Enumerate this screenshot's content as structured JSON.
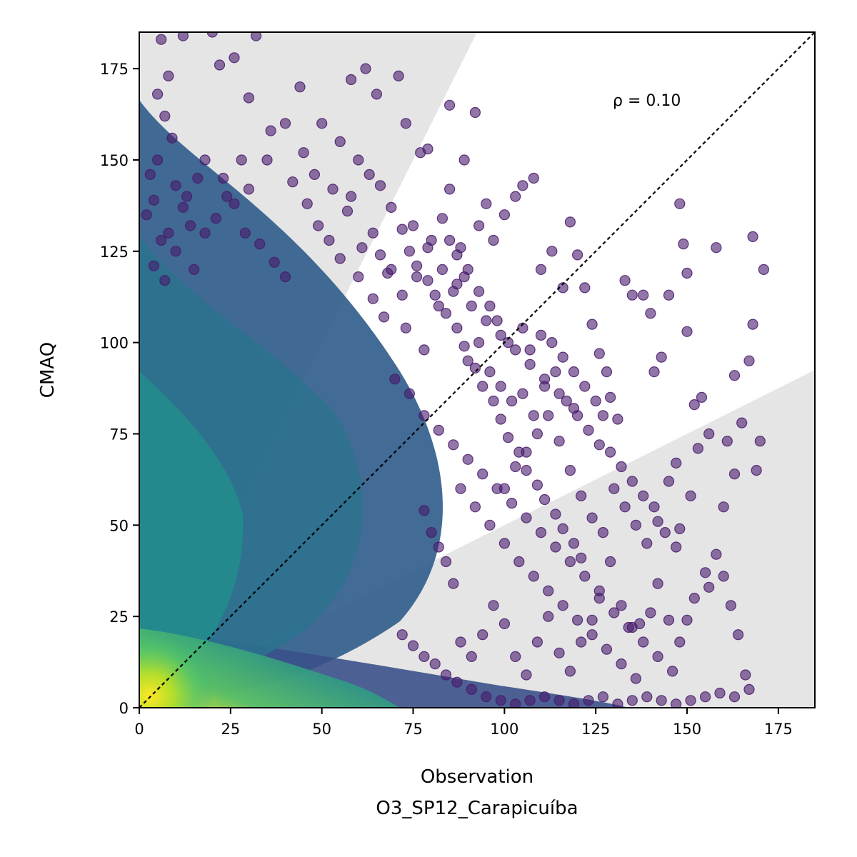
{
  "chart_data": {
    "type": "scatter",
    "xlabel": "Observation",
    "xlabel_sub": "O3_SP12_Carapicuíba",
    "ylabel": "CMAQ",
    "xlim": [
      0,
      185
    ],
    "ylim": [
      0,
      185
    ],
    "x_ticks": [
      "0",
      "25",
      "50",
      "75",
      "100",
      "125",
      "150",
      "175"
    ],
    "y_ticks": [
      "0",
      "25",
      "50",
      "75",
      "100",
      "125",
      "150",
      "175"
    ],
    "annotation": "ρ = 0.10",
    "reference_line": "y = x",
    "grid": false,
    "colormap": "viridis",
    "colors": {
      "sparse": "#481a6c",
      "mid": "#3b518b",
      "dense": "#21918c",
      "peak": "#fde725",
      "band": "#e5e5e5"
    },
    "density_gradient": {
      "values": [
        0,
        0.25,
        0.5,
        0.75,
        1
      ],
      "colors": [
        "#440154",
        "#3b528b",
        "#21918c",
        "#5ec962",
        "#fde725"
      ]
    },
    "agreement_band": {
      "lower_slope": 0.5,
      "upper_slope": 2.0
    },
    "points": [
      [
        6,
        183
      ],
      [
        12,
        184
      ],
      [
        32,
        184
      ],
      [
        8,
        173
      ],
      [
        5,
        168
      ],
      [
        7,
        162
      ],
      [
        9,
        156
      ],
      [
        5,
        150
      ],
      [
        3,
        146
      ],
      [
        10,
        143
      ],
      [
        4,
        139
      ],
      [
        13,
        140
      ],
      [
        2,
        135
      ],
      [
        14,
        132
      ],
      [
        6,
        128
      ],
      [
        18,
        130
      ],
      [
        10,
        125
      ],
      [
        21,
        134
      ],
      [
        4,
        121
      ],
      [
        15,
        120
      ],
      [
        7,
        117
      ],
      [
        23,
        145
      ],
      [
        26,
        138
      ],
      [
        29,
        130
      ],
      [
        33,
        127
      ],
      [
        37,
        122
      ],
      [
        40,
        118
      ],
      [
        30,
        142
      ],
      [
        35,
        150
      ],
      [
        42,
        144
      ],
      [
        46,
        138
      ],
      [
        49,
        132
      ],
      [
        52,
        128
      ],
      [
        55,
        123
      ],
      [
        58,
        140
      ],
      [
        61,
        126
      ],
      [
        50,
        160
      ],
      [
        55,
        155
      ],
      [
        44,
        170
      ],
      [
        30,
        167
      ],
      [
        22,
        176
      ],
      [
        20,
        185
      ],
      [
        26,
        178
      ],
      [
        18,
        150
      ],
      [
        58,
        172
      ],
      [
        62,
        175
      ],
      [
        65,
        168
      ],
      [
        71,
        173
      ],
      [
        73,
        160
      ],
      [
        77,
        152
      ],
      [
        79,
        153
      ],
      [
        80,
        128
      ],
      [
        83,
        134
      ],
      [
        85,
        142
      ],
      [
        88,
        126
      ],
      [
        90,
        120
      ],
      [
        76,
        118
      ],
      [
        72,
        113
      ],
      [
        68,
        119
      ],
      [
        64,
        112
      ],
      [
        60,
        118
      ],
      [
        67,
        107
      ],
      [
        73,
        104
      ],
      [
        78,
        98
      ],
      [
        82,
        110
      ],
      [
        86,
        114
      ],
      [
        92,
        163
      ],
      [
        85,
        165
      ],
      [
        89,
        150
      ],
      [
        93,
        132
      ],
      [
        95,
        138
      ],
      [
        97,
        128
      ],
      [
        100,
        135
      ],
      [
        103,
        140
      ],
      [
        105,
        143
      ],
      [
        108,
        145
      ],
      [
        110,
        120
      ],
      [
        113,
        125
      ],
      [
        116,
        115
      ],
      [
        118,
        133
      ],
      [
        120,
        124
      ],
      [
        122,
        115
      ],
      [
        124,
        105
      ],
      [
        126,
        97
      ],
      [
        128,
        92
      ],
      [
        129,
        85
      ],
      [
        131,
        79
      ],
      [
        133,
        117
      ],
      [
        135,
        113
      ],
      [
        138,
        113
      ],
      [
        140,
        108
      ],
      [
        141,
        92
      ],
      [
        143,
        96
      ],
      [
        145,
        113
      ],
      [
        147,
        67
      ],
      [
        148,
        138
      ],
      [
        149,
        127
      ],
      [
        150,
        119
      ],
      [
        150,
        103
      ],
      [
        152,
        83
      ],
      [
        154,
        85
      ],
      [
        156,
        75
      ],
      [
        158,
        126
      ],
      [
        161,
        73
      ],
      [
        163,
        91
      ],
      [
        165,
        78
      ],
      [
        168,
        129
      ],
      [
        168,
        105
      ],
      [
        169,
        65
      ],
      [
        171,
        120
      ],
      [
        170,
        73
      ],
      [
        167,
        95
      ],
      [
        163,
        64
      ],
      [
        160,
        55
      ],
      [
        158,
        42
      ],
      [
        155,
        37
      ],
      [
        152,
        30
      ],
      [
        150,
        24
      ],
      [
        148,
        18
      ],
      [
        145,
        24
      ],
      [
        142,
        34
      ],
      [
        140,
        26
      ],
      [
        137,
        23
      ],
      [
        135,
        22
      ],
      [
        132,
        28
      ],
      [
        129,
        40
      ],
      [
        126,
        32
      ],
      [
        124,
        24
      ],
      [
        121,
        18
      ],
      [
        118,
        10
      ],
      [
        115,
        15
      ],
      [
        112,
        25
      ],
      [
        109,
        18
      ],
      [
        106,
        9
      ],
      [
        103,
        14
      ],
      [
        100,
        23
      ],
      [
        97,
        28
      ],
      [
        94,
        20
      ],
      [
        91,
        14
      ],
      [
        88,
        18
      ],
      [
        86,
        34
      ],
      [
        84,
        40
      ],
      [
        82,
        44
      ],
      [
        80,
        48
      ],
      [
        78,
        54
      ],
      [
        100,
        60
      ],
      [
        103,
        66
      ],
      [
        106,
        70
      ],
      [
        109,
        75
      ],
      [
        112,
        80
      ],
      [
        115,
        73
      ],
      [
        118,
        65
      ],
      [
        121,
        58
      ],
      [
        124,
        52
      ],
      [
        127,
        48
      ],
      [
        130,
        60
      ],
      [
        133,
        55
      ],
      [
        136,
        50
      ],
      [
        139,
        45
      ],
      [
        142,
        51
      ],
      [
        145,
        62
      ],
      [
        148,
        49
      ],
      [
        151,
        58
      ],
      [
        153,
        71
      ],
      [
        156,
        33
      ],
      [
        160,
        36
      ],
      [
        162,
        28
      ],
      [
        164,
        20
      ],
      [
        166,
        9
      ],
      [
        167,
        5
      ],
      [
        163,
        3
      ],
      [
        159,
        4
      ],
      [
        155,
        3
      ],
      [
        151,
        2
      ],
      [
        147,
        1
      ],
      [
        143,
        2
      ],
      [
        139,
        3
      ],
      [
        135,
        2
      ],
      [
        131,
        1
      ],
      [
        127,
        3
      ],
      [
        123,
        2
      ],
      [
        119,
        1
      ],
      [
        115,
        2
      ],
      [
        111,
        3
      ],
      [
        107,
        2
      ],
      [
        103,
        1
      ],
      [
        99,
        2
      ],
      [
        95,
        3
      ],
      [
        91,
        5
      ],
      [
        87,
        7
      ],
      [
        84,
        9
      ],
      [
        81,
        12
      ],
      [
        78,
        14
      ],
      [
        75,
        17
      ],
      [
        72,
        20
      ],
      [
        90,
        95
      ],
      [
        93,
        100
      ],
      [
        96,
        92
      ],
      [
        99,
        88
      ],
      [
        102,
        84
      ],
      [
        105,
        86
      ],
      [
        108,
        80
      ],
      [
        111,
        88
      ],
      [
        114,
        92
      ],
      [
        117,
        84
      ],
      [
        120,
        80
      ],
      [
        123,
        76
      ],
      [
        126,
        72
      ],
      [
        129,
        70
      ],
      [
        132,
        66
      ],
      [
        135,
        62
      ],
      [
        138,
        58
      ],
      [
        141,
        55
      ],
      [
        144,
        48
      ],
      [
        147,
        44
      ],
      [
        70,
        90
      ],
      [
        74,
        86
      ],
      [
        78,
        80
      ],
      [
        82,
        76
      ],
      [
        86,
        72
      ],
      [
        90,
        68
      ],
      [
        94,
        64
      ],
      [
        98,
        60
      ],
      [
        102,
        56
      ],
      [
        106,
        52
      ],
      [
        110,
        48
      ],
      [
        114,
        44
      ],
      [
        118,
        40
      ],
      [
        122,
        36
      ],
      [
        126,
        30
      ],
      [
        130,
        26
      ],
      [
        134,
        22
      ],
      [
        138,
        18
      ],
      [
        142,
        14
      ],
      [
        146,
        10
      ],
      [
        75,
        132
      ],
      [
        79,
        126
      ],
      [
        83,
        120
      ],
      [
        87,
        116
      ],
      [
        91,
        110
      ],
      [
        95,
        106
      ],
      [
        99,
        102
      ],
      [
        103,
        98
      ],
      [
        107,
        94
      ],
      [
        111,
        90
      ],
      [
        115,
        86
      ],
      [
        119,
        82
      ],
      [
        88,
        60
      ],
      [
        92,
        55
      ],
      [
        96,
        50
      ],
      [
        100,
        45
      ],
      [
        104,
        40
      ],
      [
        108,
        36
      ],
      [
        112,
        32
      ],
      [
        116,
        28
      ],
      [
        120,
        24
      ],
      [
        124,
        20
      ],
      [
        128,
        16
      ],
      [
        132,
        12
      ],
      [
        136,
        8
      ],
      [
        60,
        150
      ],
      [
        63,
        146
      ],
      [
        66,
        143
      ],
      [
        69,
        137
      ],
      [
        72,
        131
      ],
      [
        74,
        125
      ],
      [
        76,
        121
      ],
      [
        79,
        117
      ],
      [
        81,
        113
      ],
      [
        84,
        108
      ],
      [
        87,
        104
      ],
      [
        89,
        99
      ],
      [
        92,
        93
      ],
      [
        94,
        88
      ],
      [
        97,
        84
      ],
      [
        99,
        79
      ],
      [
        101,
        74
      ],
      [
        104,
        70
      ],
      [
        106,
        65
      ],
      [
        109,
        61
      ],
      [
        111,
        57
      ],
      [
        114,
        53
      ],
      [
        116,
        49
      ],
      [
        119,
        45
      ],
      [
        121,
        41
      ],
      [
        40,
        160
      ],
      [
        36,
        158
      ],
      [
        28,
        150
      ],
      [
        24,
        140
      ],
      [
        16,
        145
      ],
      [
        12,
        137
      ],
      [
        8,
        130
      ],
      [
        45,
        152
      ],
      [
        48,
        146
      ],
      [
        53,
        142
      ],
      [
        57,
        136
      ],
      [
        64,
        130
      ],
      [
        66,
        124
      ],
      [
        69,
        120
      ],
      [
        85,
        128
      ],
      [
        87,
        124
      ],
      [
        89,
        118
      ],
      [
        93,
        114
      ],
      [
        96,
        110
      ],
      [
        98,
        106
      ],
      [
        101,
        100
      ],
      [
        105,
        104
      ],
      [
        107,
        98
      ],
      [
        110,
        102
      ],
      [
        113,
        100
      ],
      [
        116,
        96
      ],
      [
        119,
        92
      ],
      [
        122,
        88
      ],
      [
        125,
        84
      ],
      [
        127,
        80
      ]
    ]
  }
}
